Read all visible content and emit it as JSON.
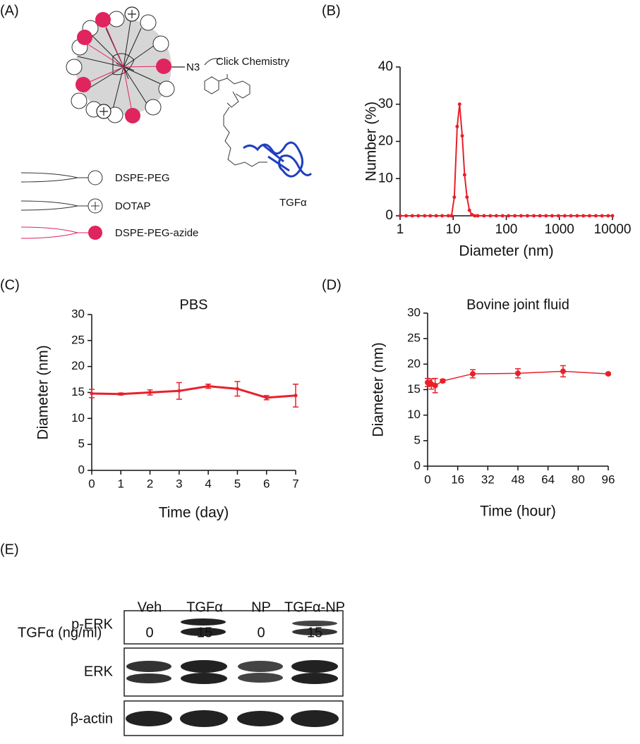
{
  "panel_labels": [
    "(A)",
    "(B)",
    "(C)",
    "(D)",
    "(E)"
  ],
  "diagram": {
    "linker": "N3",
    "reaction": "Click Chemistry",
    "protein": "TGFα",
    "legend": [
      "DSPE-PEG",
      "DOTAP",
      "DSPE-PEG-azide"
    ]
  },
  "chart_data": [
    {
      "type": "line",
      "xlabel": "Diameter (nm)",
      "ylabel": "Number (%)",
      "xscale": "log",
      "x": [
        1,
        1.3,
        1.7,
        2.2,
        2.9,
        3.7,
        4.8,
        6.2,
        8.1,
        9.3,
        10.5,
        11.9,
        13.2,
        14.8,
        16.4,
        18.2,
        20.2,
        22.5,
        25.5,
        29,
        38,
        50,
        65,
        85,
        110,
        145,
        190,
        250,
        330,
        430,
        560,
        730,
        960,
        1260,
        1650,
        2160,
        2830,
        3700,
        4850,
        6350,
        8300,
        10000
      ],
      "values": [
        0,
        0,
        0,
        0,
        0,
        0,
        0,
        0,
        0,
        0,
        5,
        24,
        30,
        21.5,
        11,
        5,
        1.5,
        0.3,
        0,
        0,
        0,
        0,
        0,
        0,
        0,
        0,
        0,
        0,
        0,
        0,
        0,
        0,
        0,
        0,
        0,
        0,
        0,
        0,
        0,
        0,
        0,
        0
      ],
      "color": "#e8202a",
      "xlim": [
        1,
        10000
      ],
      "ylim": [
        0,
        40
      ],
      "xticks": [
        1,
        10,
        100,
        1000,
        10000
      ],
      "yticks": [
        0,
        10,
        20,
        30,
        40
      ]
    },
    {
      "type": "line",
      "title": "PBS",
      "xlabel": "Time (day)",
      "ylabel": "Diameter (nm)",
      "x": [
        0,
        1,
        2,
        3,
        4,
        5,
        6,
        7
      ],
      "values": [
        14.8,
        14.7,
        15.0,
        15.3,
        16.2,
        15.7,
        14.0,
        14.4
      ],
      "errors": [
        0.8,
        0.2,
        0.5,
        1.6,
        0.4,
        1.4,
        0.4,
        2.2
      ],
      "color": "#e8202a",
      "xlim": [
        0,
        7
      ],
      "ylim": [
        0,
        30
      ],
      "xticks": [
        0,
        1,
        2,
        3,
        4,
        5,
        6,
        7
      ],
      "yticks": [
        0,
        5,
        10,
        15,
        20,
        25,
        30
      ]
    },
    {
      "type": "line",
      "title": "Bovine joint fluid",
      "xlabel": "Time (hour)",
      "ylabel": "Diameter (nm)",
      "x": [
        0,
        1,
        2,
        4,
        8,
        24,
        48,
        72,
        96
      ],
      "values": [
        16.4,
        16.3,
        16.1,
        15.8,
        16.7,
        18.1,
        18.2,
        18.6,
        18.1
      ],
      "errors": [
        0.8,
        0.5,
        1.0,
        1.4,
        0.3,
        0.8,
        0.9,
        1.1,
        0.2
      ],
      "color": "#e8202a",
      "xlim": [
        0,
        96
      ],
      "ylim": [
        0,
        30
      ],
      "xticks": [
        0,
        16,
        32,
        48,
        64,
        80,
        96
      ],
      "yticks": [
        0,
        5,
        10,
        15,
        20,
        25,
        30
      ]
    }
  ],
  "blot": {
    "groups": [
      "Veh",
      "TGFα",
      "NP",
      "TGFα-NP"
    ],
    "dose_label": "TGFα (ng/ml)",
    "doses": [
      0,
      15,
      0,
      15
    ],
    "rows": [
      "p-ERK",
      "ERK",
      "β-actin"
    ]
  }
}
